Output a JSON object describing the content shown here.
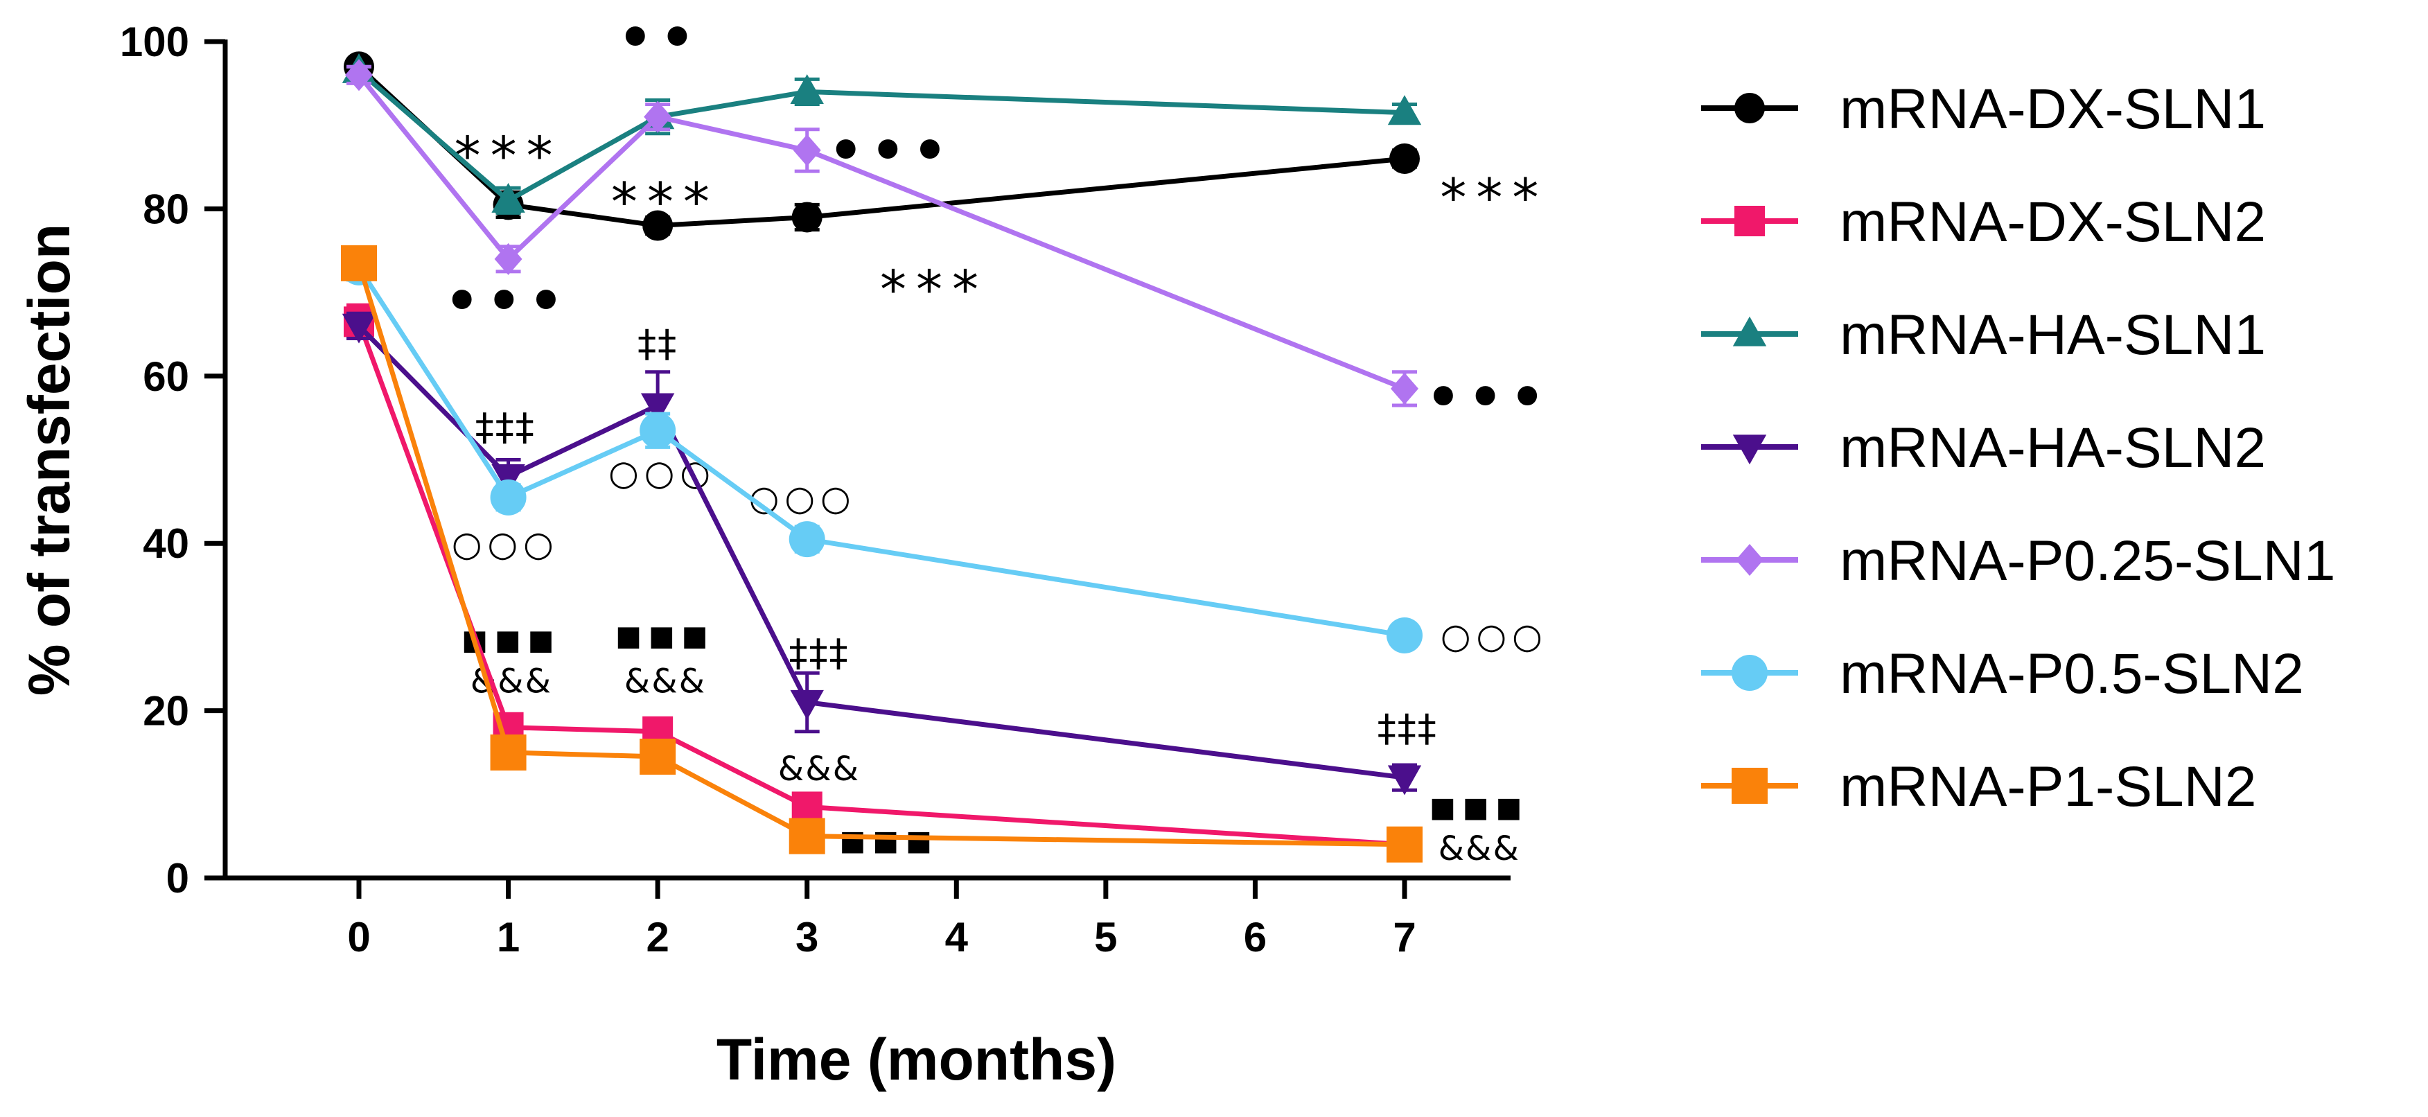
{
  "chart_data": {
    "type": "line",
    "title": "",
    "xlabel": "Time (months)",
    "ylabel": "% of transfection",
    "x_ticks": [
      0,
      1,
      2,
      3,
      4,
      5,
      6,
      7
    ],
    "y_ticks": [
      0,
      20,
      40,
      60,
      80,
      100
    ],
    "xlim": [
      -0.6,
      7.7
    ],
    "ylim": [
      0,
      100
    ],
    "legend_position": "right",
    "series": [
      {
        "name": "mRNA-DX-SLN1",
        "color": "#000000",
        "marker": "circle",
        "x": [
          0,
          1,
          2,
          3,
          7
        ],
        "values": [
          97,
          80.5,
          78,
          79,
          86
        ],
        "errors": [
          0.5,
          1.5,
          1,
          1.5,
          1
        ]
      },
      {
        "name": "mRNA-DX-SLN2",
        "color": "#f0186a",
        "marker": "square",
        "x": [
          0,
          1,
          2,
          3,
          7
        ],
        "values": [
          66.5,
          18,
          17.5,
          8.5,
          4
        ],
        "errors": [
          2,
          1.5,
          1.5,
          1.5,
          1
        ]
      },
      {
        "name": "mRNA-HA-SLN1",
        "color": "#1a8080",
        "marker": "triangle-up",
        "x": [
          0,
          1,
          2,
          3,
          7
        ],
        "values": [
          96.5,
          81,
          91,
          94,
          91.5
        ],
        "errors": [
          0.5,
          1.5,
          2,
          1.5,
          1
        ]
      },
      {
        "name": "mRNA-HA-SLN2",
        "color": "#4b0f8c",
        "marker": "triangle-down",
        "x": [
          0,
          1,
          2,
          3,
          7
        ],
        "values": [
          66,
          48,
          56.5,
          21,
          12
        ],
        "errors": [
          1.5,
          2,
          4,
          3.5,
          1.5
        ]
      },
      {
        "name": "mRNA-P0.25-SLN1",
        "color": "#b074f0",
        "marker": "diamond",
        "x": [
          0,
          1,
          2,
          3,
          7
        ],
        "values": [
          96,
          74,
          91,
          87,
          58.5
        ],
        "errors": [
          1,
          1.5,
          1.5,
          2.5,
          2
        ]
      },
      {
        "name": "mRNA-P0.5-SLN2",
        "color": "#66ccf5",
        "marker": "circle",
        "x": [
          0,
          1,
          2,
          3,
          7
        ],
        "values": [
          73,
          45.5,
          53.5,
          40.5,
          29
        ],
        "errors": [
          1.5,
          1.5,
          2,
          1.5,
          1
        ]
      },
      {
        "name": "mRNA-P1-SLN2",
        "color": "#fa820a",
        "marker": "square",
        "x": [
          0,
          1,
          2,
          3,
          7
        ],
        "values": [
          73.5,
          15,
          14.5,
          5,
          4
        ],
        "errors": [
          1.5,
          1.5,
          1.5,
          1.5,
          1
        ]
      }
    ],
    "annotations": [
      {
        "id": "star-1",
        "text": "***",
        "kind": "star",
        "x": 1.0,
        "y": 87
      },
      {
        "id": "dots-1",
        "text": "•••",
        "kind": "dots",
        "x": 0.98,
        "y": 69
      },
      {
        "id": "dd-1",
        "text": "‡‡‡",
        "kind": "dagger",
        "x": 0.98,
        "y": 54
      },
      {
        "id": "circ-1",
        "text": "○○○",
        "kind": "circle",
        "x": 0.98,
        "y": 40
      },
      {
        "id": "sq-1",
        "text": "■■■",
        "kind": "square",
        "x": 1.02,
        "y": 28.5
      },
      {
        "id": "amp-1",
        "text": "&&&",
        "kind": "amp",
        "x": 1.02,
        "y": 23.5
      },
      {
        "id": "dots-2",
        "text": "••",
        "kind": "dots",
        "x": 2.0,
        "y": 100.5
      },
      {
        "id": "star-2",
        "text": "***",
        "kind": "star",
        "x": 2.05,
        "y": 81.5
      },
      {
        "id": "dd-2",
        "text": "‡‡",
        "kind": "dagger",
        "x": 2.0,
        "y": 64
      },
      {
        "id": "circ-2",
        "text": "○○○",
        "kind": "circle",
        "x": 2.03,
        "y": 48.5
      },
      {
        "id": "sq-2",
        "text": "■■■",
        "kind": "square",
        "x": 2.05,
        "y": 29
      },
      {
        "id": "amp-2",
        "text": "&&&",
        "kind": "amp",
        "x": 2.05,
        "y": 23.5
      },
      {
        "id": "dots-3",
        "text": "•••",
        "kind": "dots",
        "x": 3.55,
        "y": 87
      },
      {
        "id": "star-3",
        "text": "***",
        "kind": "star",
        "x": 3.85,
        "y": 71
      },
      {
        "id": "circ-3",
        "text": "○○○",
        "kind": "circle",
        "x": 2.97,
        "y": 45.5
      },
      {
        "id": "dd-3",
        "text": "‡‡‡",
        "kind": "dagger",
        "x": 3.08,
        "y": 27
      },
      {
        "id": "amp-3",
        "text": "&&&",
        "kind": "amp",
        "x": 3.08,
        "y": 13
      },
      {
        "id": "sq-3",
        "text": "■■■",
        "kind": "square",
        "x": 3.55,
        "y": 4.5
      },
      {
        "id": "star-7",
        "text": "***",
        "kind": "star",
        "x": 7.6,
        "y": 82
      },
      {
        "id": "dots-7",
        "text": "•••",
        "kind": "dots",
        "x": 7.55,
        "y": 57.5
      },
      {
        "id": "circ-7",
        "text": "○○○",
        "kind": "circle",
        "x": 7.6,
        "y": 29
      },
      {
        "id": "dd-7",
        "text": "‡‡‡",
        "kind": "dagger",
        "x": 7.02,
        "y": 18
      },
      {
        "id": "sq-7",
        "text": "■■■",
        "kind": "square",
        "x": 7.5,
        "y": 8.5
      },
      {
        "id": "amp-7",
        "text": "&&&",
        "kind": "amp",
        "x": 7.5,
        "y": 3.5
      }
    ]
  }
}
